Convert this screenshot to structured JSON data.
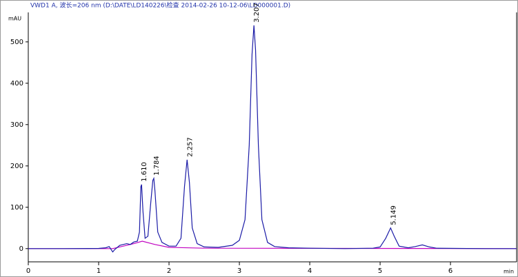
{
  "chart_data": {
    "type": "line",
    "title": "VWD1 A, 波长=206 nm (D:\\DATE\\LD140226\\检查 2014-02-26 10-12-06\\LD000001.D)",
    "y_label": "mAU",
    "x_label": "min",
    "xlim": [
      0,
      6.94
    ],
    "ylim": [
      -32,
      568
    ],
    "xticks": [
      0,
      1,
      2,
      3,
      4,
      5,
      6
    ],
    "yticks": [
      0,
      100,
      200,
      300,
      400,
      500
    ],
    "series": [
      {
        "color": "#1a1aa6",
        "x": [
          0,
          0.5,
          1.0,
          1.1,
          1.15,
          1.18,
          1.2,
          1.23,
          1.3,
          1.4,
          1.45,
          1.5,
          1.55,
          1.58,
          1.6,
          1.61,
          1.63,
          1.66,
          1.7,
          1.74,
          1.77,
          1.784,
          1.8,
          1.84,
          1.9,
          2.0,
          2.1,
          2.17,
          2.22,
          2.257,
          2.29,
          2.33,
          2.4,
          2.5,
          2.7,
          2.9,
          3.0,
          3.08,
          3.14,
          3.18,
          3.207,
          3.23,
          3.27,
          3.32,
          3.4,
          3.5,
          3.7,
          4.0,
          4.5,
          4.9,
          5.0,
          5.08,
          5.149,
          5.2,
          5.27,
          5.4,
          5.5,
          5.6,
          5.7,
          5.8,
          6.5,
          6.94
        ],
        "values": [
          0,
          0,
          0.5,
          2,
          5,
          -3,
          -8,
          -2,
          8,
          12,
          10,
          16,
          18,
          40,
          150,
          155,
          90,
          25,
          30,
          110,
          165,
          170,
          140,
          40,
          15,
          6,
          6,
          25,
          150,
          215,
          160,
          50,
          12,
          4,
          3,
          8,
          20,
          70,
          250,
          470,
          540,
          480,
          250,
          70,
          15,
          5,
          2,
          1,
          0,
          1,
          4,
          25,
          50,
          30,
          6,
          2,
          5,
          9,
          4,
          1,
          0,
          0
        ]
      },
      {
        "color": "#c000c0",
        "x": [
          0,
          1.2,
          1.5,
          1.62,
          1.8,
          2.0,
          2.5,
          6.94
        ],
        "values": [
          0,
          0,
          12,
          18,
          10,
          3,
          1,
          0
        ]
      }
    ],
    "peaks": [
      {
        "x": 1.61,
        "y": 155,
        "label": "1.610"
      },
      {
        "x": 1.784,
        "y": 170,
        "label": "1.784"
      },
      {
        "x": 2.257,
        "y": 215,
        "label": "2.257"
      },
      {
        "x": 3.207,
        "y": 540,
        "label": "3.207"
      },
      {
        "x": 5.149,
        "y": 50,
        "label": "5.149"
      }
    ]
  }
}
